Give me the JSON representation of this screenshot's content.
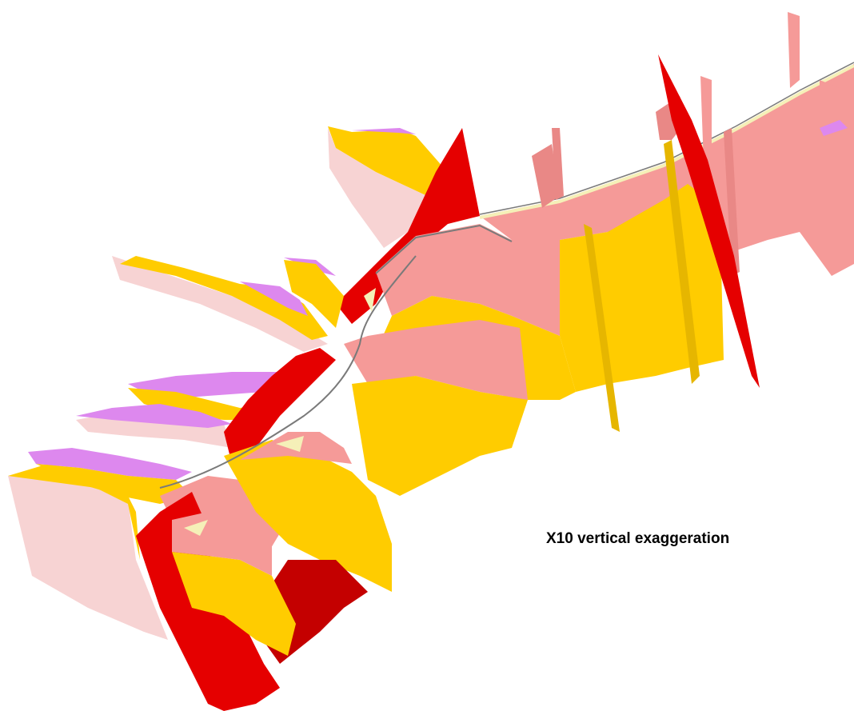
{
  "caption": "X10 vertical exaggeration",
  "colors": {
    "background": "#ffffff",
    "fault_red": "#e50000",
    "fault_red_dark": "#c40000",
    "pink_unit": "#f59a98",
    "pink_unit_dark": "#e98886",
    "light_pink_unit": "#f7d3d3",
    "yellow_unit": "#ffcc00",
    "yellow_unit_dark": "#e6b600",
    "lilac_unit": "#dd88ee",
    "cream_unit": "#f5f0b8",
    "grey_edge": "#7a7a7a"
  }
}
